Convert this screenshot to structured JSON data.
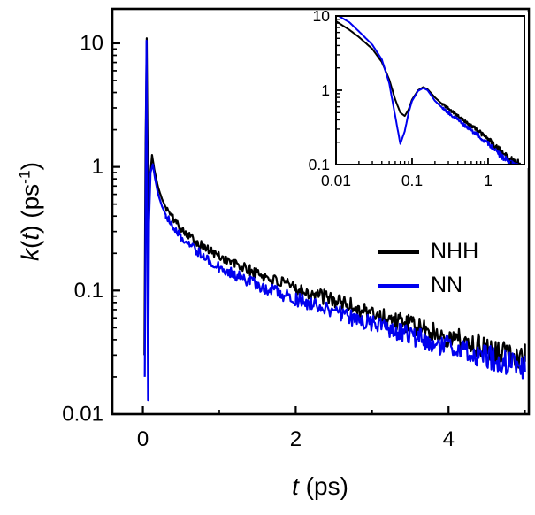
{
  "figure": {
    "background": "#ffffff",
    "axis_color": "#000000"
  },
  "labels": {
    "y": {
      "sym": "k",
      "open": "(",
      "var": "t",
      "mid": ") (ps",
      "sup": "-1",
      "close": ")"
    },
    "x": {
      "var": "t",
      "rest": " (ps)"
    }
  },
  "legend": {
    "items": [
      {
        "label": "NHH",
        "color": "#000000"
      },
      {
        "label": "NN",
        "color": "#0000ee"
      }
    ]
  },
  "chart_data": [
    {
      "id": "main",
      "type": "line",
      "title": "",
      "xlabel": "t (ps)",
      "ylabel": "k(t) (ps-1)",
      "x_scale": "linear",
      "y_scale": "log",
      "xlim": [
        -0.4,
        5.05
      ],
      "ylim": [
        0.01,
        19
      ],
      "x_ticks": [
        0,
        2,
        4
      ],
      "x_tick_labels": [
        "0",
        "2",
        "4"
      ],
      "x_minor_ticks": [
        1,
        3,
        5
      ],
      "y_ticks": [
        10,
        1,
        0.1,
        0.01
      ],
      "y_tick_labels": [
        "10",
        "1",
        "0.1",
        "0.01"
      ],
      "grid": false,
      "legend_position": "right-middle",
      "noise": {
        "start": 0.3,
        "base": 0.028,
        "growth": 0.016
      },
      "series": [
        {
          "name": "NHH",
          "color": "#000000",
          "x": [
            0.02,
            0.035,
            0.05,
            0.065,
            0.075,
            0.09,
            0.12,
            0.15,
            0.2,
            0.25,
            0.3,
            0.4,
            0.5,
            0.6,
            0.7,
            0.8,
            0.9,
            1.0,
            1.2,
            1.4,
            1.6,
            1.8,
            2.0,
            2.2,
            2.4,
            2.6,
            2.8,
            3.0,
            3.2,
            3.4,
            3.6,
            3.8,
            4.0,
            4.2,
            4.4,
            4.6,
            4.8,
            5.0
          ],
          "y": [
            0.03,
            1.5,
            11,
            0.9,
            0.38,
            0.8,
            1.25,
            0.95,
            0.68,
            0.55,
            0.47,
            0.38,
            0.32,
            0.28,
            0.25,
            0.225,
            0.205,
            0.19,
            0.165,
            0.145,
            0.13,
            0.115,
            0.105,
            0.095,
            0.088,
            0.08,
            0.072,
            0.066,
            0.06,
            0.055,
            0.05,
            0.046,
            0.042,
            0.039,
            0.036,
            0.033,
            0.031,
            0.029
          ]
        },
        {
          "name": "NN",
          "color": "#0000ee",
          "x": [
            0.025,
            0.04,
            0.048,
            0.058,
            0.068,
            0.08,
            0.1,
            0.13,
            0.16,
            0.2,
            0.25,
            0.3,
            0.4,
            0.5,
            0.6,
            0.7,
            0.8,
            0.9,
            1.0,
            1.2,
            1.4,
            1.6,
            1.8,
            2.0,
            2.2,
            2.4,
            2.6,
            2.8,
            3.0,
            3.2,
            3.4,
            3.6,
            3.8,
            4.0,
            4.2,
            4.4,
            4.6,
            4.8,
            5.0
          ],
          "y": [
            0.02,
            2.0,
            10.5,
            0.3,
            0.013,
            0.35,
            0.9,
            1.05,
            0.8,
            0.6,
            0.48,
            0.41,
            0.33,
            0.27,
            0.235,
            0.21,
            0.19,
            0.17,
            0.155,
            0.135,
            0.118,
            0.105,
            0.094,
            0.085,
            0.077,
            0.07,
            0.064,
            0.058,
            0.053,
            0.049,
            0.045,
            0.041,
            0.038,
            0.035,
            0.032,
            0.03,
            0.028,
            0.026,
            0.024
          ]
        }
      ]
    },
    {
      "id": "inset",
      "type": "line",
      "title": "",
      "xlabel": "",
      "ylabel": "",
      "x_scale": "log",
      "y_scale": "log",
      "xlim": [
        0.01,
        3
      ],
      "ylim": [
        0.1,
        10
      ],
      "x_ticks": [
        0.01,
        0.1,
        1
      ],
      "x_tick_labels": [
        "0.01",
        "0.1",
        "1"
      ],
      "y_ticks": [
        10,
        1,
        0.1
      ],
      "y_tick_labels": [
        "10",
        "1",
        "0.1"
      ],
      "grid": false,
      "noise": {
        "start": 0.25,
        "base": 0.018,
        "growth": 0.02
      },
      "series": [
        {
          "name": "NHH",
          "color": "#000000",
          "x": [
            0.01,
            0.015,
            0.02,
            0.03,
            0.04,
            0.05,
            0.06,
            0.07,
            0.08,
            0.09,
            0.1,
            0.12,
            0.14,
            0.16,
            0.2,
            0.25,
            0.3,
            0.4,
            0.5,
            0.7,
            1.0,
            1.4,
            2.0,
            2.8
          ],
          "y": [
            8.5,
            6.5,
            5.2,
            3.6,
            2.4,
            1.4,
            0.75,
            0.5,
            0.45,
            0.55,
            0.75,
            1.0,
            1.1,
            1.03,
            0.8,
            0.65,
            0.57,
            0.45,
            0.38,
            0.3,
            0.22,
            0.16,
            0.115,
            0.095
          ]
        },
        {
          "name": "NN",
          "color": "#0000ee",
          "x": [
            0.01,
            0.015,
            0.02,
            0.03,
            0.04,
            0.05,
            0.06,
            0.07,
            0.08,
            0.09,
            0.1,
            0.12,
            0.14,
            0.16,
            0.2,
            0.25,
            0.3,
            0.4,
            0.5,
            0.7,
            1.0,
            1.4,
            2.0,
            2.8
          ],
          "y": [
            10.5,
            8.2,
            6.2,
            4.1,
            2.6,
            1.25,
            0.45,
            0.19,
            0.28,
            0.5,
            0.72,
            0.98,
            1.07,
            1.0,
            0.72,
            0.58,
            0.5,
            0.4,
            0.33,
            0.26,
            0.19,
            0.14,
            0.1,
            0.085
          ]
        }
      ]
    }
  ]
}
